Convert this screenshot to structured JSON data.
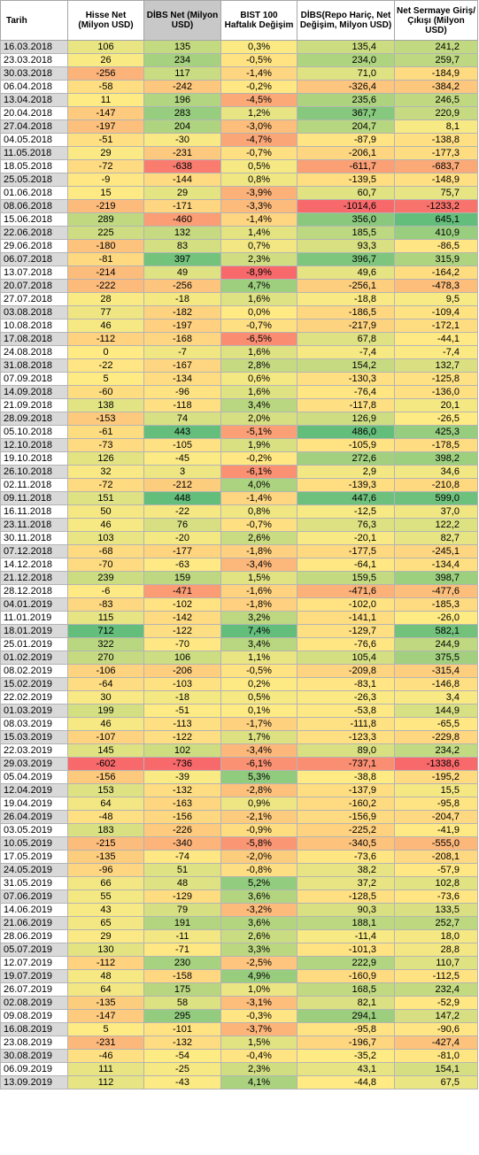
{
  "headers": {
    "date": "Tarih",
    "hisse": "Hisse Net (Milyon USD)",
    "dibs": "DİBS Net (Milyon USD)",
    "bist": "BIST 100 Haftalık Değişim",
    "dibs_repo": "DİBS(Repo Hariç, Net Değişim, Milyon USD)",
    "sermaye": "Net Sermaye Giriş/Çıkışı (Milyon USD)"
  },
  "rows": [
    [
      "16.03.2018",
      "106",
      "135",
      "0,3%",
      "135,4",
      "241,2"
    ],
    [
      "23.03.2018",
      "26",
      "234",
      "-0,5%",
      "234,0",
      "259,7"
    ],
    [
      "30.03.2018",
      "-256",
      "117",
      "-1,4%",
      "71,0",
      "-184,9"
    ],
    [
      "06.04.2018",
      "-58",
      "-242",
      "-0,2%",
      "-326,4",
      "-384,2"
    ],
    [
      "13.04.2018",
      "11",
      "196",
      "-4,5%",
      "235,6",
      "246,5"
    ],
    [
      "20.04.2018",
      "-147",
      "283",
      "1,2%",
      "367,7",
      "220,9"
    ],
    [
      "27.04.2018",
      "-197",
      "204",
      "-3,0%",
      "204,7",
      "8,1"
    ],
    [
      "04.05.2018",
      "-51",
      "-30",
      "-4,7%",
      "-87,9",
      "-138,8"
    ],
    [
      "11.05.2018",
      "29",
      "-231",
      "-0,7%",
      "-206,1",
      "-177,3"
    ],
    [
      "18.05.2018",
      "-72",
      "-638",
      "0,5%",
      "-611,7",
      "-683,7"
    ],
    [
      "25.05.2018",
      "-9",
      "-144",
      "0,8%",
      "-139,5",
      "-148,9"
    ],
    [
      "01.06.2018",
      "15",
      "29",
      "-3,9%",
      "60,7",
      "75,7"
    ],
    [
      "08.06.2018",
      "-219",
      "-171",
      "-3,3%",
      "-1014,6",
      "-1233,2"
    ],
    [
      "15.06.2018",
      "289",
      "-460",
      "-1,4%",
      "356,0",
      "645,1"
    ],
    [
      "22.06.2018",
      "225",
      "132",
      "1,4%",
      "185,5",
      "410,9"
    ],
    [
      "29.06.2018",
      "-180",
      "83",
      "0,7%",
      "93,3",
      "-86,5"
    ],
    [
      "06.07.2018",
      "-81",
      "397",
      "2,3%",
      "396,7",
      "315,9"
    ],
    [
      "13.07.2018",
      "-214",
      "49",
      "-8,9%",
      "49,6",
      "-164,2"
    ],
    [
      "20.07.2018",
      "-222",
      "-256",
      "4,7%",
      "-256,1",
      "-478,3"
    ],
    [
      "27.07.2018",
      "28",
      "-18",
      "1,6%",
      "-18,8",
      "9,5"
    ],
    [
      "03.08.2018",
      "77",
      "-182",
      "0,0%",
      "-186,5",
      "-109,4"
    ],
    [
      "10.08.2018",
      "46",
      "-197",
      "-0,7%",
      "-217,9",
      "-172,1"
    ],
    [
      "17.08.2018",
      "-112",
      "-168",
      "-6,5%",
      "67,8",
      "-44,1"
    ],
    [
      "24.08.2018",
      "0",
      "-7",
      "1,6%",
      "-7,4",
      "-7,4"
    ],
    [
      "31.08.2018",
      "-22",
      "-167",
      "2,8%",
      "154,2",
      "132,7"
    ],
    [
      "07.09.2018",
      "5",
      "-134",
      "0,6%",
      "-130,3",
      "-125,8"
    ],
    [
      "14.09.2018",
      "-60",
      "-96",
      "1,6%",
      "-76,4",
      "-136,0"
    ],
    [
      "21.09.2018",
      "138",
      "-118",
      "3,4%",
      "-117,8",
      "20,1"
    ],
    [
      "28.09.2018",
      "-153",
      "74",
      "2,0%",
      "126,9",
      "-26,5"
    ],
    [
      "05.10.2018",
      "-61",
      "443",
      "-5,1%",
      "486,0",
      "425,3"
    ],
    [
      "12.10.2018",
      "-73",
      "-105",
      "1,9%",
      "-105,9",
      "-178,5"
    ],
    [
      "19.10.2018",
      "126",
      "-45",
      "-0,2%",
      "272,6",
      "398,2"
    ],
    [
      "26.10.2018",
      "32",
      "3",
      "-6,1%",
      "2,9",
      "34,6"
    ],
    [
      "02.11.2018",
      "-72",
      "-212",
      "4,0%",
      "-139,3",
      "-210,8"
    ],
    [
      "09.11.2018",
      "151",
      "448",
      "-1,4%",
      "447,6",
      "599,0"
    ],
    [
      "16.11.2018",
      "50",
      "-22",
      "0,8%",
      "-12,5",
      "37,0"
    ],
    [
      "23.11.2018",
      "46",
      "76",
      "-0,7%",
      "76,3",
      "122,2"
    ],
    [
      "30.11.2018",
      "103",
      "-20",
      "2,6%",
      "-20,1",
      "82,7"
    ],
    [
      "07.12.2018",
      "-68",
      "-177",
      "-1,8%",
      "-177,5",
      "-245,1"
    ],
    [
      "14.12.2018",
      "-70",
      "-63",
      "-3,4%",
      "-64,1",
      "-134,4"
    ],
    [
      "21.12.2018",
      "239",
      "159",
      "1,5%",
      "159,5",
      "398,7"
    ],
    [
      "28.12.2018",
      "-6",
      "-471",
      "-1,6%",
      "-471,6",
      "-477,6"
    ],
    [
      "04.01.2019",
      "-83",
      "-102",
      "-1,8%",
      "-102,0",
      "-185,3"
    ],
    [
      "11.01.2019",
      "115",
      "-142",
      "3,2%",
      "-141,1",
      "-26,0"
    ],
    [
      "18.01.2019",
      "712",
      "-122",
      "7,4%",
      "-129,7",
      "582,1"
    ],
    [
      "25.01.2019",
      "322",
      "-70",
      "3,4%",
      "-76,6",
      "244,9"
    ],
    [
      "01.02.2019",
      "270",
      "106",
      "1,1%",
      "105,4",
      "375,5"
    ],
    [
      "08.02.2019",
      "-106",
      "-206",
      "-0,5%",
      "-209,8",
      "-315,4"
    ],
    [
      "15.02.2019",
      "-64",
      "-103",
      "0,2%",
      "-83,1",
      "-146,8"
    ],
    [
      "22.02.2019",
      "30",
      "-18",
      "0,5%",
      "-26,3",
      "3,4"
    ],
    [
      "01.03.2019",
      "199",
      "-51",
      "0,1%",
      "-53,8",
      "144,9"
    ],
    [
      "08.03.2019",
      "46",
      "-113",
      "-1,7%",
      "-111,8",
      "-65,5"
    ],
    [
      "15.03.2019",
      "-107",
      "-122",
      "1,7%",
      "-123,3",
      "-229,8"
    ],
    [
      "22.03.2019",
      "145",
      "102",
      "-3,4%",
      "89,0",
      "234,2"
    ],
    [
      "29.03.2019",
      "-602",
      "-736",
      "-6,1%",
      "-737,1",
      "-1338,6"
    ],
    [
      "05.04.2019",
      "-156",
      "-39",
      "5,3%",
      "-38,8",
      "-195,2"
    ],
    [
      "12.04.2019",
      "153",
      "-132",
      "-2,8%",
      "-137,9",
      "15,5"
    ],
    [
      "19.04.2019",
      "64",
      "-163",
      "0,9%",
      "-160,2",
      "-95,8"
    ],
    [
      "26.04.2019",
      "-48",
      "-156",
      "-2,1%",
      "-156,9",
      "-204,7"
    ],
    [
      "03.05.2019",
      "183",
      "-226",
      "-0,9%",
      "-225,2",
      "-41,9"
    ],
    [
      "10.05.2019",
      "-215",
      "-340",
      "-5,8%",
      "-340,5",
      "-555,0"
    ],
    [
      "17.05.2019",
      "-135",
      "-74",
      "-2,0%",
      "-73,6",
      "-208,1"
    ],
    [
      "24.05.2019",
      "-96",
      "51",
      "-0,8%",
      "38,2",
      "-57,9"
    ],
    [
      "31.05.2019",
      "66",
      "48",
      "5,2%",
      "37,2",
      "102,8"
    ],
    [
      "07.06.2019",
      "55",
      "-129",
      "3,6%",
      "-128,5",
      "-73,6"
    ],
    [
      "14.06.2019",
      "43",
      "79",
      "-3,2%",
      "90,3",
      "133,5"
    ],
    [
      "21.06.2019",
      "65",
      "191",
      "3,6%",
      "188,1",
      "252,7"
    ],
    [
      "28.06.2019",
      "29",
      "-11",
      "2,6%",
      "-11,4",
      "18,0"
    ],
    [
      "05.07.2019",
      "130",
      "-71",
      "3,3%",
      "-101,3",
      "28,8"
    ],
    [
      "12.07.2019",
      "-112",
      "230",
      "-2,5%",
      "222,9",
      "110,7"
    ],
    [
      "19.07.2019",
      "48",
      "-158",
      "4,9%",
      "-160,9",
      "-112,5"
    ],
    [
      "26.07.2019",
      "64",
      "175",
      "1,0%",
      "168,5",
      "232,4"
    ],
    [
      "02.08.2019",
      "-135",
      "58",
      "-3,1%",
      "82,1",
      "-52,9"
    ],
    [
      "09.08.2019",
      "-147",
      "295",
      "-0,3%",
      "294,1",
      "147,2"
    ],
    [
      "16.08.2019",
      "5",
      "-101",
      "-3,7%",
      "-95,8",
      "-90,6"
    ],
    [
      "23.08.2019",
      "-231",
      "-132",
      "1,5%",
      "-196,7",
      "-427,4"
    ],
    [
      "30.08.2019",
      "-46",
      "-54",
      "-0,4%",
      "-35,2",
      "-81,0"
    ],
    [
      "06.09.2019",
      "111",
      "-25",
      "2,3%",
      "43,1",
      "154,1"
    ],
    [
      "13.09.2019",
      "112",
      "-43",
      "4,1%",
      "-44,8",
      "67,5"
    ]
  ],
  "scale_colors": {
    "low": "#f8696b",
    "mid": "#ffeb84",
    "high": "#63be7b"
  }
}
